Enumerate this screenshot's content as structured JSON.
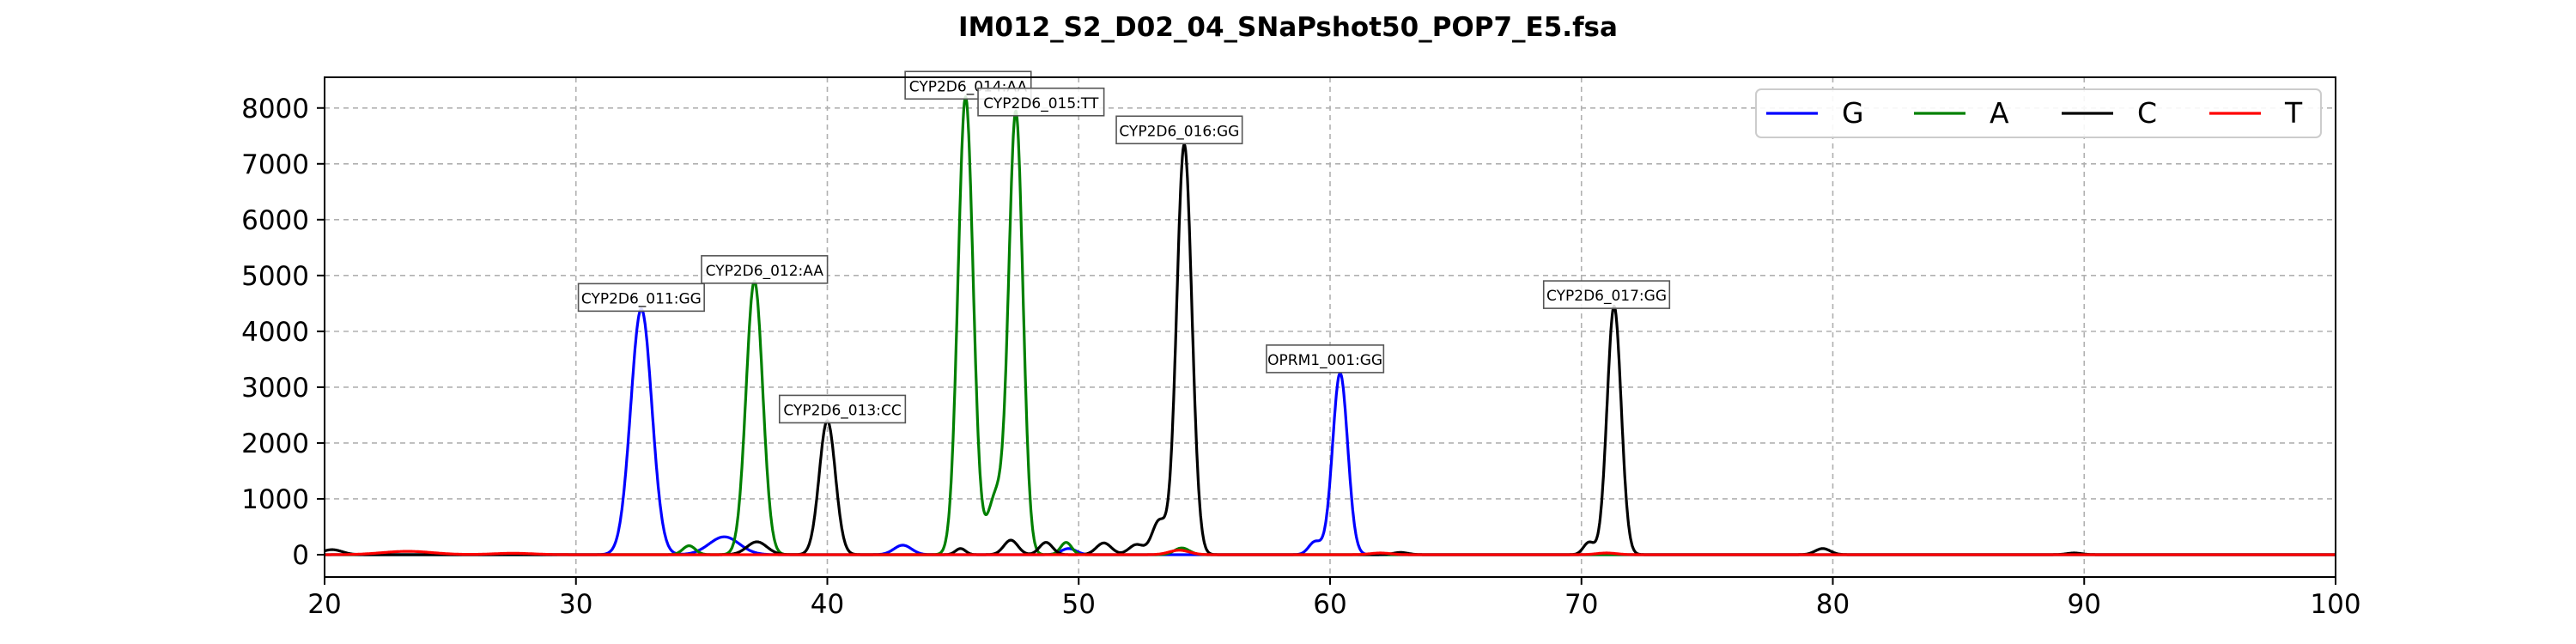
{
  "chart_data": {
    "type": "line",
    "title": "IM012_S2_D02_04_SNaPshot50_POP7_E5.fsa",
    "xlabel": "",
    "ylabel": "",
    "xlim": [
      20,
      100
    ],
    "ylim": [
      -400,
      8550
    ],
    "x_ticks": [
      20,
      30,
      40,
      50,
      60,
      70,
      80,
      90,
      100
    ],
    "y_ticks": [
      0,
      1000,
      2000,
      3000,
      4000,
      5000,
      6000,
      7000,
      8000
    ],
    "grid": true,
    "legend_placement": "top-right",
    "series": [
      {
        "name": "G",
        "color": "#0000ff",
        "peaks": [
          {
            "x": 32.6,
            "y": 4400,
            "w": 0.42
          },
          {
            "x": 35.9,
            "y": 320,
            "w": 0.6
          },
          {
            "x": 43.0,
            "y": 170,
            "w": 0.35
          },
          {
            "x": 49.6,
            "y": 110,
            "w": 0.3
          },
          {
            "x": 59.4,
            "y": 230,
            "w": 0.25
          },
          {
            "x": 60.4,
            "y": 3250,
            "w": 0.3
          }
        ]
      },
      {
        "name": "A",
        "color": "#008000",
        "peaks": [
          {
            "x": 34.5,
            "y": 160,
            "w": 0.25
          },
          {
            "x": 37.1,
            "y": 4900,
            "w": 0.33
          },
          {
            "x": 45.5,
            "y": 8200,
            "w": 0.3
          },
          {
            "x": 46.7,
            "y": 1050,
            "w": 0.32
          },
          {
            "x": 47.5,
            "y": 7900,
            "w": 0.28
          },
          {
            "x": 49.5,
            "y": 220,
            "w": 0.22
          },
          {
            "x": 54.1,
            "y": 120,
            "w": 0.3
          }
        ]
      },
      {
        "name": "C",
        "color": "#000000",
        "peaks": [
          {
            "x": 20.3,
            "y": 90,
            "w": 0.4
          },
          {
            "x": 37.2,
            "y": 230,
            "w": 0.4
          },
          {
            "x": 40.0,
            "y": 2400,
            "w": 0.32
          },
          {
            "x": 45.3,
            "y": 110,
            "w": 0.2
          },
          {
            "x": 47.3,
            "y": 260,
            "w": 0.28
          },
          {
            "x": 48.7,
            "y": 220,
            "w": 0.26
          },
          {
            "x": 51.0,
            "y": 210,
            "w": 0.3
          },
          {
            "x": 52.3,
            "y": 180,
            "w": 0.3
          },
          {
            "x": 53.2,
            "y": 600,
            "w": 0.28
          },
          {
            "x": 54.2,
            "y": 7350,
            "w": 0.3
          },
          {
            "x": 62.8,
            "y": 40,
            "w": 0.3
          },
          {
            "x": 70.3,
            "y": 220,
            "w": 0.22
          },
          {
            "x": 71.3,
            "y": 4450,
            "w": 0.28
          },
          {
            "x": 79.6,
            "y": 110,
            "w": 0.3
          },
          {
            "x": 89.6,
            "y": 30,
            "w": 0.3
          }
        ]
      },
      {
        "name": "T",
        "color": "#ff0000",
        "peaks": [
          {
            "x": 23.3,
            "y": 60,
            "w": 1.0
          },
          {
            "x": 27.5,
            "y": 25,
            "w": 0.8
          },
          {
            "x": 54.0,
            "y": 80,
            "w": 0.4
          },
          {
            "x": 62.0,
            "y": 30,
            "w": 0.4
          },
          {
            "x": 71.0,
            "y": 30,
            "w": 0.4
          }
        ]
      }
    ],
    "annotations": [
      {
        "text": "CYP2D6_011:GG",
        "x": 32.6,
        "y": 4500
      },
      {
        "text": "CYP2D6_012:AA",
        "x": 37.5,
        "y": 5000
      },
      {
        "text": "CYP2D6_013:CC",
        "x": 40.6,
        "y": 2500
      },
      {
        "text": "CYP2D6_014:AA",
        "x": 45.6,
        "y": 8300
      },
      {
        "text": "CYP2D6_015:TT",
        "x": 48.5,
        "y": 8000
      },
      {
        "text": "CYP2D6_016:GG",
        "x": 54.0,
        "y": 7500
      },
      {
        "text": "OPRM1_001:GG",
        "x": 59.8,
        "y": 3400
      },
      {
        "text": "CYP2D6_017:GG",
        "x": 71.0,
        "y": 4550
      }
    ]
  }
}
